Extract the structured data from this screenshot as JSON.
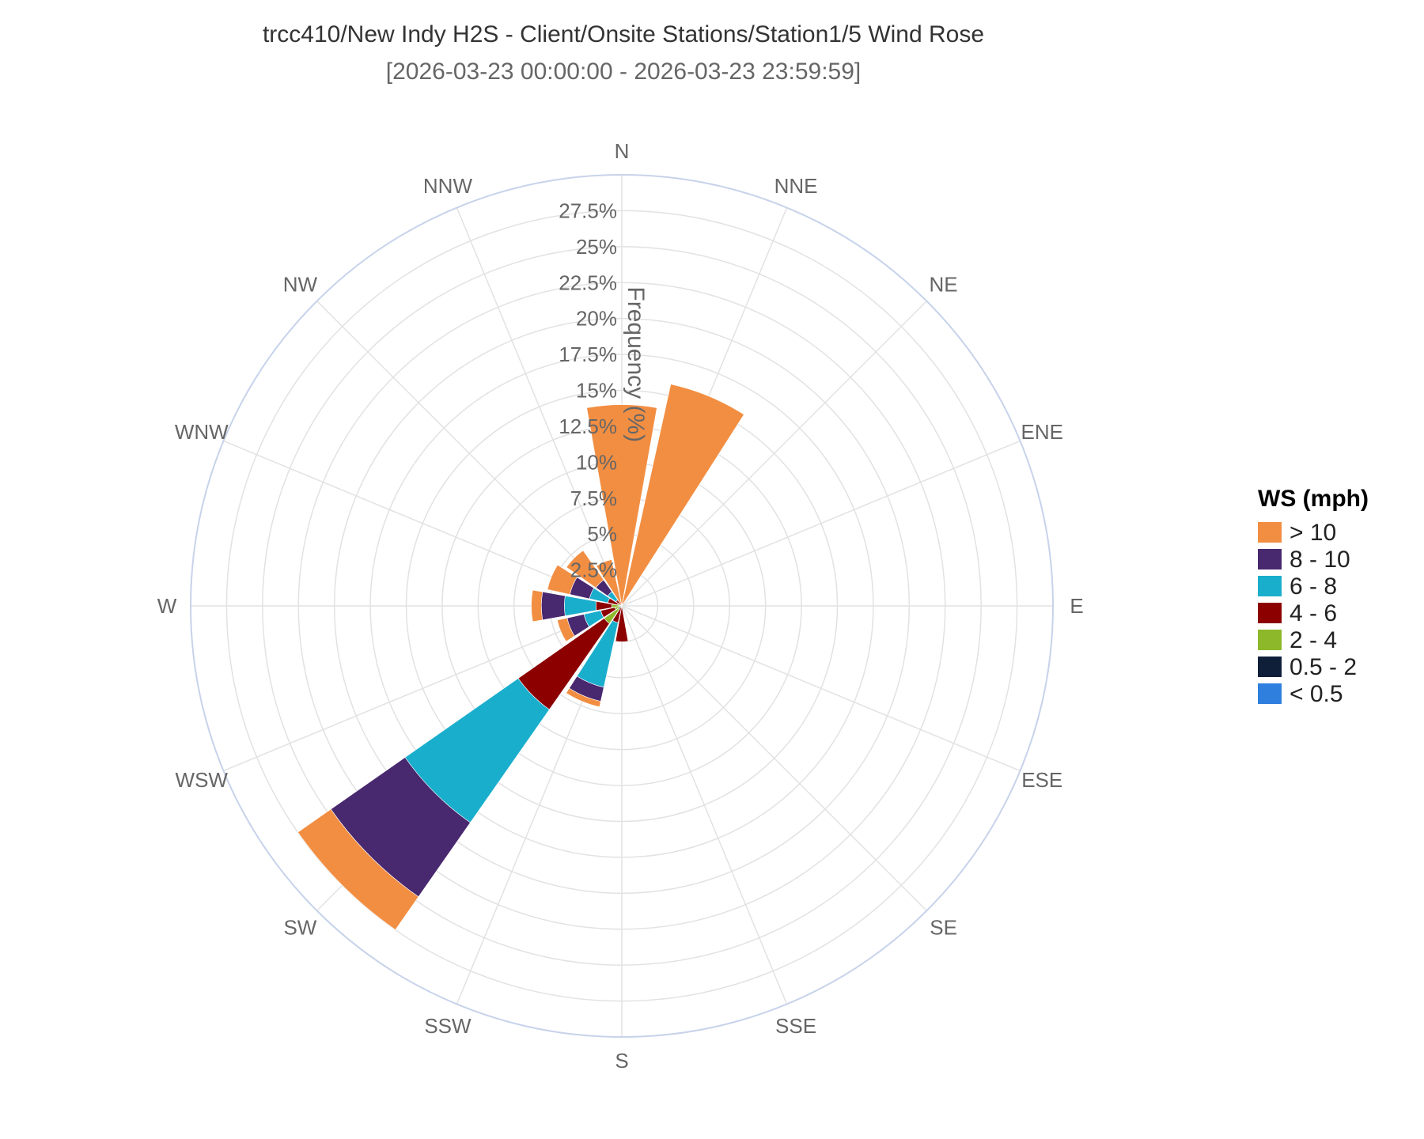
{
  "chart_data": {
    "type": "windrose",
    "title": "trcc410/New Indy H2S - Client/Onsite Stations/Station1/5 Wind Rose",
    "subtitle": "[2026-03-23 00:00:00 - 2026-03-23 23:59:59]",
    "radial_axis_title": "Frequency (%)",
    "radial_ticks": [
      "2.5%",
      "5%",
      "7.5%",
      "10%",
      "12.5%",
      "15%",
      "17.5%",
      "20%",
      "22.5%",
      "25%",
      "27.5%"
    ],
    "radial_tick_values": [
      2.5,
      5,
      7.5,
      10,
      12.5,
      15,
      17.5,
      20,
      22.5,
      25,
      27.5
    ],
    "radial_range": [
      0,
      30
    ],
    "directions": [
      "N",
      "NNE",
      "NE",
      "ENE",
      "E",
      "ESE",
      "SE",
      "SSE",
      "S",
      "SSW",
      "SW",
      "WSW",
      "W",
      "WNW",
      "NW",
      "NNW"
    ],
    "legend_title": "WS (mph)",
    "series": [
      {
        "name": "< 0.5",
        "color": "#2e7fde",
        "values": [
          0,
          0,
          0,
          0,
          0,
          0,
          0,
          0,
          0,
          0,
          0,
          0,
          0,
          0,
          0,
          0
        ]
      },
      {
        "name": "0.5 - 2",
        "color": "#0f1f3a",
        "values": [
          0,
          0,
          0,
          0,
          0,
          0,
          0,
          0,
          0,
          0,
          0.3,
          0,
          0.2,
          0,
          0,
          0
        ]
      },
      {
        "name": "2 - 4",
        "color": "#8db82a",
        "values": [
          0,
          0,
          0,
          0,
          0,
          0,
          0,
          0,
          0,
          0,
          1.2,
          0.5,
          0.5,
          0.3,
          0,
          0
        ]
      },
      {
        "name": "4 - 6",
        "color": "#8c0000",
        "values": [
          0,
          0,
          0,
          0,
          0,
          0,
          0,
          0,
          2.5,
          1.2,
          7.3,
          1.0,
          1.1,
          0.7,
          0.5,
          0
        ]
      },
      {
        "name": "6 - 8",
        "color": "#1aaecd",
        "values": [
          0,
          0,
          0,
          0,
          0,
          0,
          0,
          0,
          0,
          4.6,
          9.6,
          1.2,
          2.2,
          1.3,
          0.7,
          0
        ]
      },
      {
        "name": "8 - 10",
        "color": "#48286e",
        "values": [
          0,
          0,
          0,
          0,
          0,
          0,
          0,
          0,
          0,
          1.0,
          6.3,
          1.2,
          1.6,
          1.4,
          1.0,
          0
        ]
      },
      {
        "name": "> 10",
        "color": "#f28e42",
        "values": [
          14.0,
          15.8,
          0,
          0,
          0,
          0,
          0,
          0,
          0,
          0.4,
          2.8,
          0.7,
          0.7,
          1.6,
          2.5,
          3.3
        ]
      }
    ]
  }
}
